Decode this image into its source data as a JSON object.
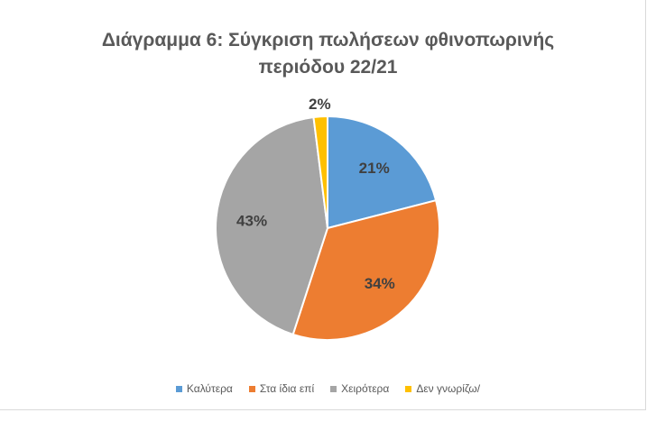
{
  "chart_data": {
    "type": "pie",
    "title_line1": "Διάγραμμα 6: Σύγκριση πωλήσεων φθινοπωρινής",
    "title_line2": "περιόδου 22/21",
    "slices": [
      {
        "name": "Καλύτερα",
        "value": 21,
        "label": "21%",
        "color": "#5b9bd5"
      },
      {
        "name": "Στα ίδια επί",
        "value": 34,
        "label": "34%",
        "color": "#ed7d31"
      },
      {
        "name": "Χειρότερα",
        "value": 43,
        "label": "43%",
        "color": "#a5a5a5"
      },
      {
        "name": "Δεν γνωρίζω/",
        "value": 2,
        "label": "2%",
        "color": "#ffc000"
      }
    ],
    "legend_position": "bottom",
    "label_color": "#404040"
  }
}
